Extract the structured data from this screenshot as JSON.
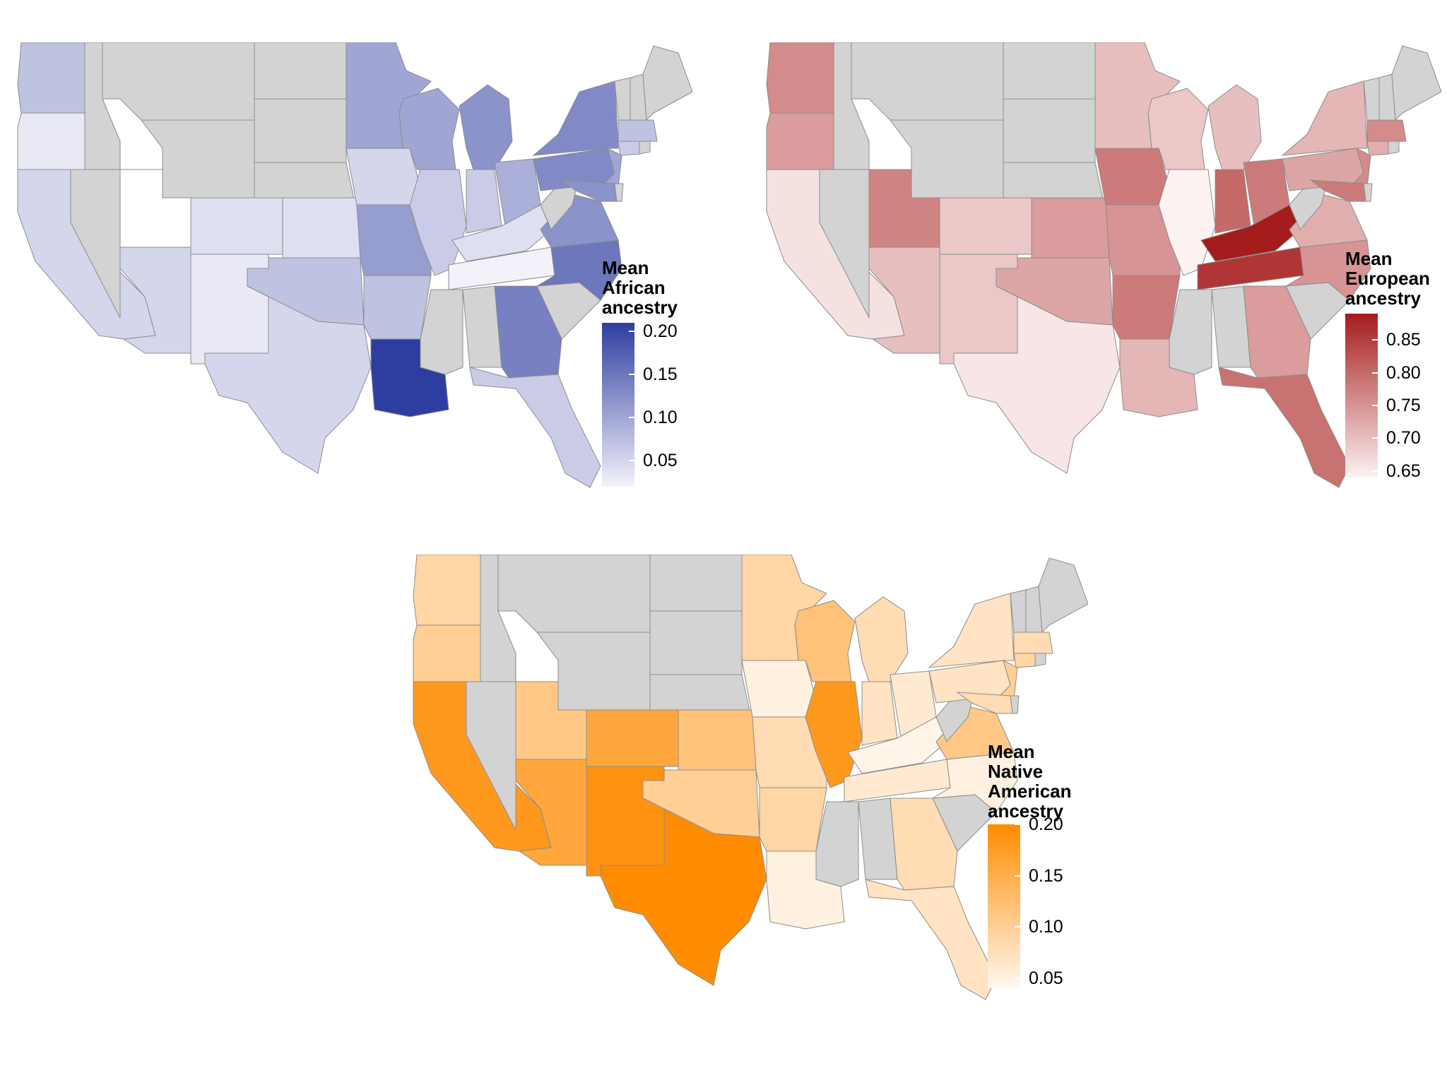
{
  "figure": "Mean genetic ancestry proportions by U.S. state",
  "no_data_color": "#d3d3d3",
  "border_color": "#8c8c8c",
  "maps": [
    {
      "id": "african",
      "legend": {
        "line1": "Mean",
        "line2": "African",
        "line3": "ancestry"
      },
      "low_color": "#f3f2fa",
      "high_color": "#2e3ea0",
      "min": 0.02,
      "max": 0.21,
      "ticks": [
        "0.20",
        "0.15",
        "0.10",
        "0.05"
      ],
      "tick_values": [
        0.2,
        0.15,
        0.1,
        0.05
      ],
      "values": {
        "WA": 0.07,
        "OR": 0.03,
        "CA": 0.05,
        "UT": 0.0,
        "CO": 0.04,
        "KS": 0.04,
        "AZ": 0.05,
        "NM": 0.03,
        "TX": 0.05,
        "MN": 0.1,
        "WI": 0.1,
        "MI": 0.12,
        "IA": 0.05,
        "IL": 0.06,
        "IN": 0.06,
        "OH": 0.09,
        "PA": 0.13,
        "NY": 0.13,
        "MO": 0.11,
        "AR": 0.07,
        "OK": 0.07,
        "KY": 0.04,
        "TN": 0.015,
        "VA": 0.12,
        "NC": 0.15,
        "GA": 0.14,
        "FL": 0.06,
        "LA": 0.21,
        "NJ": 0.1,
        "MD": 0.12,
        "MA": 0.07,
        "CT": 0.06
      }
    },
    {
      "id": "european",
      "legend": {
        "line1": "Mean",
        "line2": "European",
        "line3": "ancestry"
      },
      "low_color": "#fdf2f2",
      "high_color": "#a51c1c",
      "min": 0.64,
      "max": 0.89,
      "ticks": [
        "0.85",
        "0.80",
        "0.75",
        "0.70",
        "0.65"
      ],
      "tick_values": [
        0.85,
        0.8,
        0.75,
        0.7,
        0.65
      ],
      "values": {
        "WA": 0.76,
        "OR": 0.74,
        "CA": 0.66,
        "UT": 0.77,
        "CO": 0.69,
        "KS": 0.74,
        "AZ": 0.7,
        "NM": 0.69,
        "TX": 0.655,
        "MN": 0.7,
        "WI": 0.69,
        "MI": 0.7,
        "IA": 0.78,
        "IL": 0.64,
        "IN": 0.8,
        "OH": 0.78,
        "PA": 0.73,
        "NY": 0.71,
        "MO": 0.75,
        "AR": 0.78,
        "OK": 0.73,
        "KY": 0.89,
        "TN": 0.86,
        "VA": 0.72,
        "NC": 0.75,
        "GA": 0.74,
        "FL": 0.79,
        "LA": 0.71,
        "NJ": 0.76,
        "MD": 0.78,
        "MA": 0.76,
        "CT": 0.72
      }
    },
    {
      "id": "native",
      "legend": {
        "line1": "Mean",
        "line2": "Native",
        "line3": "American",
        "line4": "ancestry"
      },
      "low_color": "#fff7ef",
      "high_color": "#ff8c00",
      "min": 0.04,
      "max": 0.2,
      "ticks": [
        "0.20",
        "0.15",
        "0.10",
        "0.05"
      ],
      "tick_values": [
        0.2,
        0.15,
        0.1,
        0.05
      ],
      "values": {
        "WA": 0.09,
        "OR": 0.1,
        "CA": 0.18,
        "UT": 0.11,
        "CO": 0.16,
        "KS": 0.12,
        "AZ": 0.16,
        "NM": 0.19,
        "TX": 0.2,
        "MN": 0.09,
        "WI": 0.12,
        "MI": 0.08,
        "IA": 0.05,
        "IL": 0.18,
        "IN": 0.07,
        "OH": 0.06,
        "PA": 0.07,
        "NY": 0.07,
        "MO": 0.08,
        "AR": 0.09,
        "OK": 0.1,
        "KY": 0.045,
        "TN": 0.06,
        "VA": 0.11,
        "NC": 0.05,
        "GA": 0.08,
        "FL": 0.07,
        "LA": 0.05,
        "NJ": 0.1,
        "MD": 0.08,
        "MA": 0.08,
        "CT": 0.09
      }
    }
  ]
}
